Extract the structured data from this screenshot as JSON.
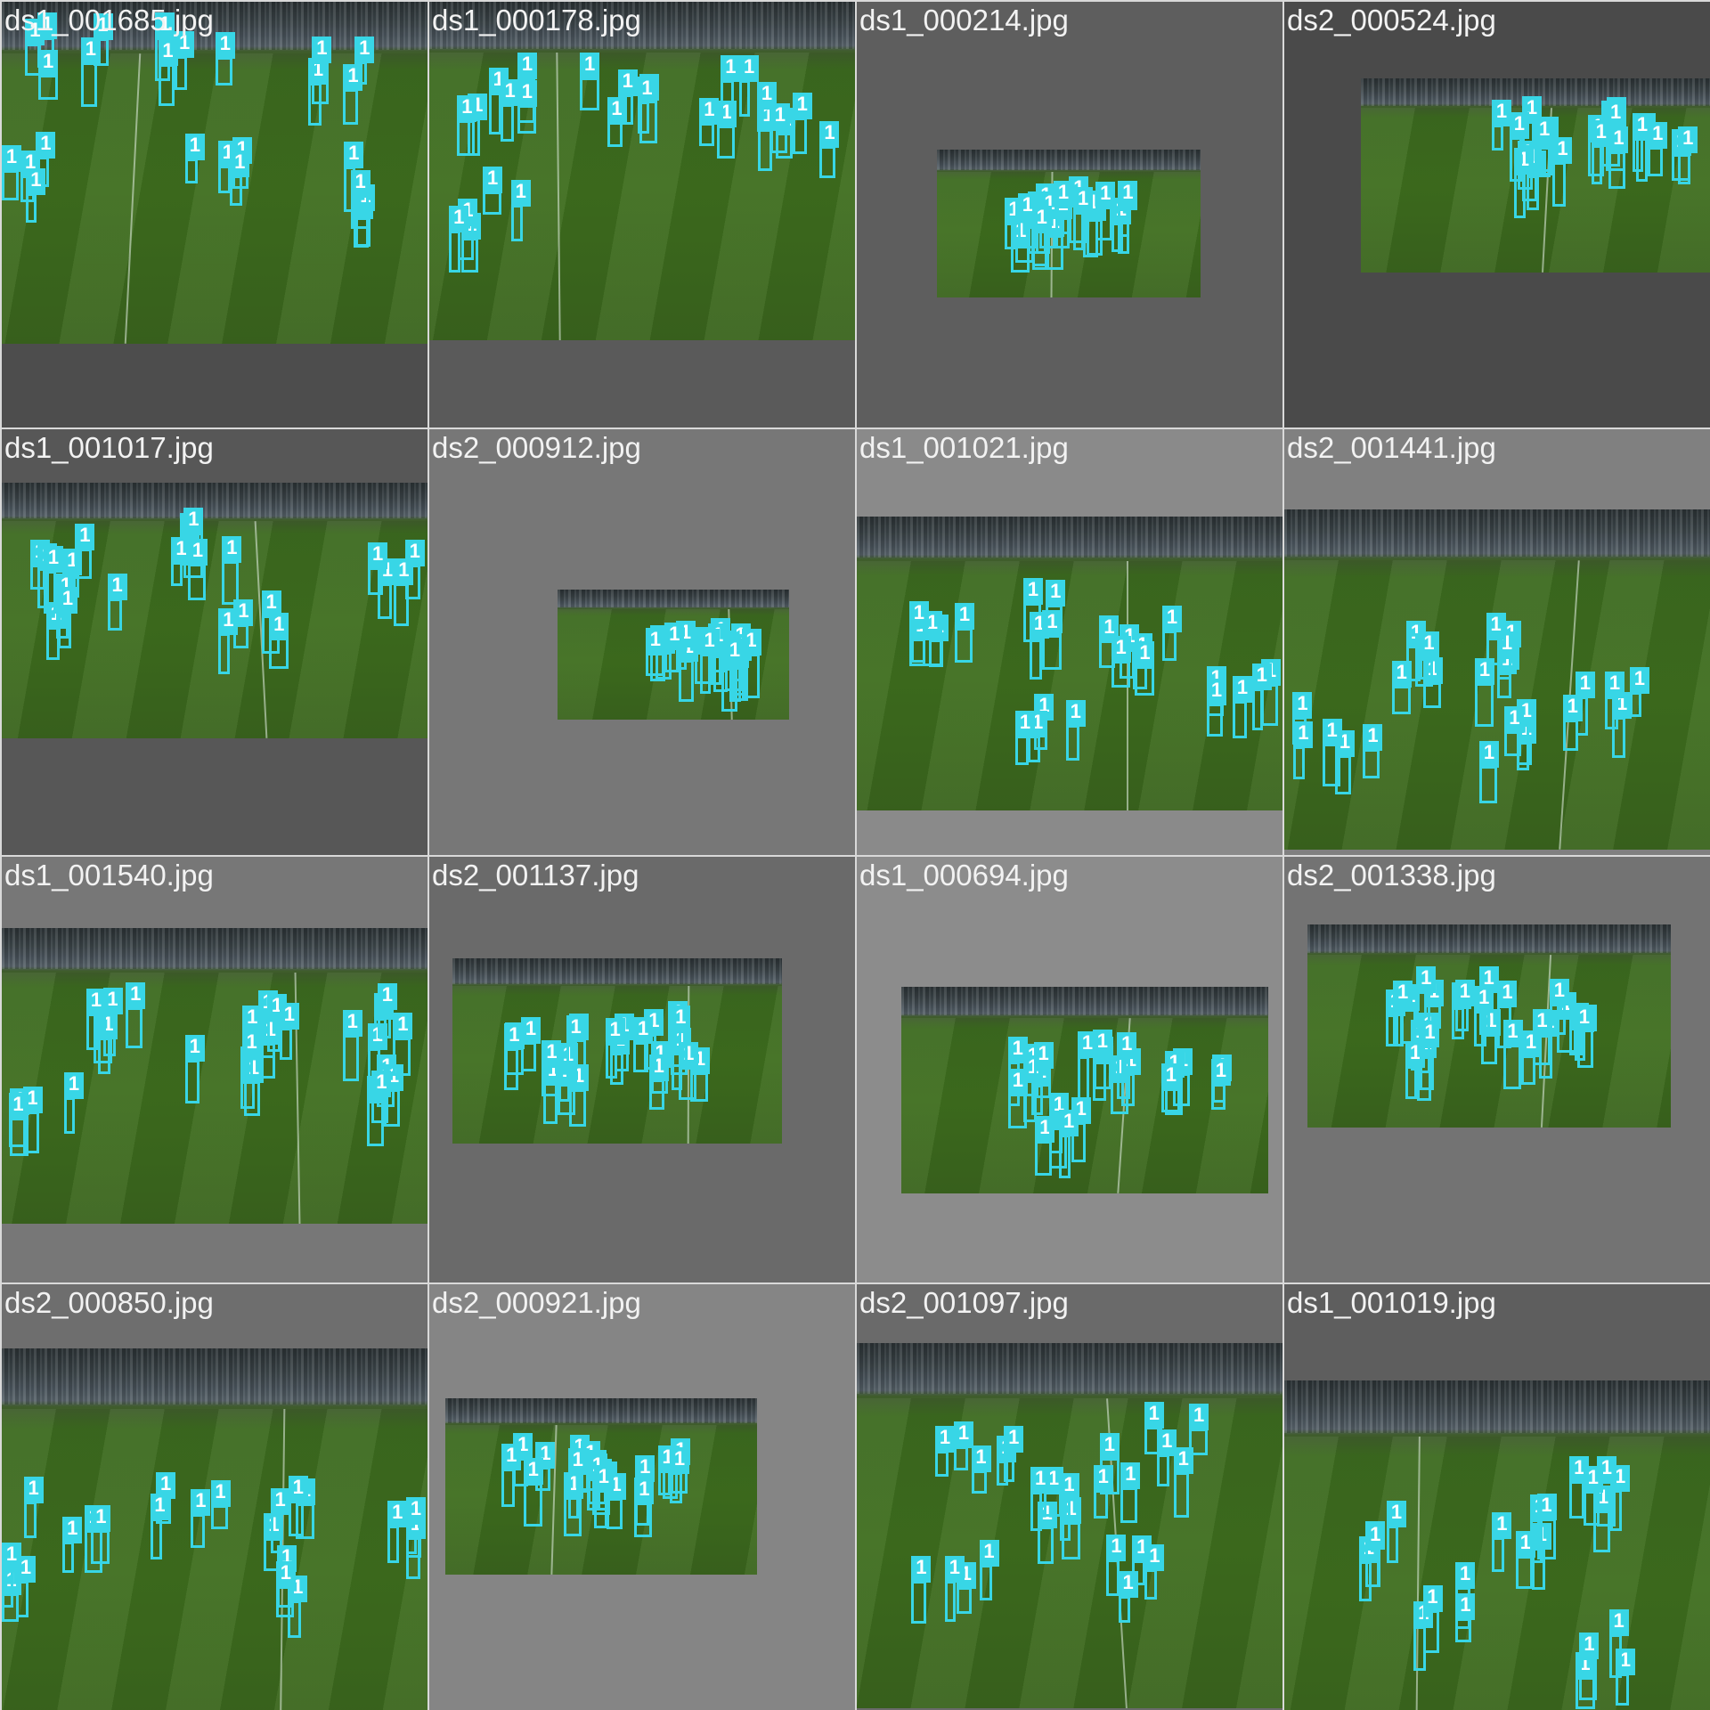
{
  "accent_color": "#38d6e6",
  "tiles": [
    {
      "filename": "ds1_001685.jpg",
      "background": "#4d4d4d",
      "detections": 25,
      "label": "1"
    },
    {
      "filename": "ds1_000178.jpg",
      "background": "#5a5a5a",
      "detections": 26,
      "label": "1"
    },
    {
      "filename": "ds1_000214.jpg",
      "background": "#5e5e5e",
      "detections": 20,
      "label": "1"
    },
    {
      "filename": "ds2_000524.jpg",
      "background": "#4a4a4a",
      "detections": 22,
      "label": "1"
    },
    {
      "filename": "ds1_001017.jpg",
      "background": "#575757",
      "detections": 22,
      "label": "1"
    },
    {
      "filename": "ds2_000912.jpg",
      "background": "#777777",
      "detections": 18,
      "label": "1"
    },
    {
      "filename": "ds1_001021.jpg",
      "background": "#8a8a8a",
      "detections": 24,
      "label": "1"
    },
    {
      "filename": "ds2_001441.jpg",
      "background": "#808080",
      "detections": 24,
      "label": "1"
    },
    {
      "filename": "ds1_001540.jpg",
      "background": "#777777",
      "detections": 27,
      "label": "1"
    },
    {
      "filename": "ds2_001137.jpg",
      "background": "#6a6a6a",
      "detections": 22,
      "label": "1"
    },
    {
      "filename": "ds1_000694.jpg",
      "background": "#8c8c8c",
      "detections": 22,
      "label": "1"
    },
    {
      "filename": "ds2_001338.jpg",
      "background": "#737373",
      "detections": 25,
      "label": "1"
    },
    {
      "filename": "ds2_000850.jpg",
      "background": "#6e6e6e",
      "detections": 22,
      "label": "1"
    },
    {
      "filename": "ds2_000921.jpg",
      "background": "#858585",
      "detections": 20,
      "label": "1"
    },
    {
      "filename": "ds2_001097.jpg",
      "background": "#6a6a6a",
      "detections": 25,
      "label": "1"
    },
    {
      "filename": "ds1_001019.jpg",
      "background": "#5e5e5e",
      "detections": 22,
      "label": "1"
    }
  ]
}
